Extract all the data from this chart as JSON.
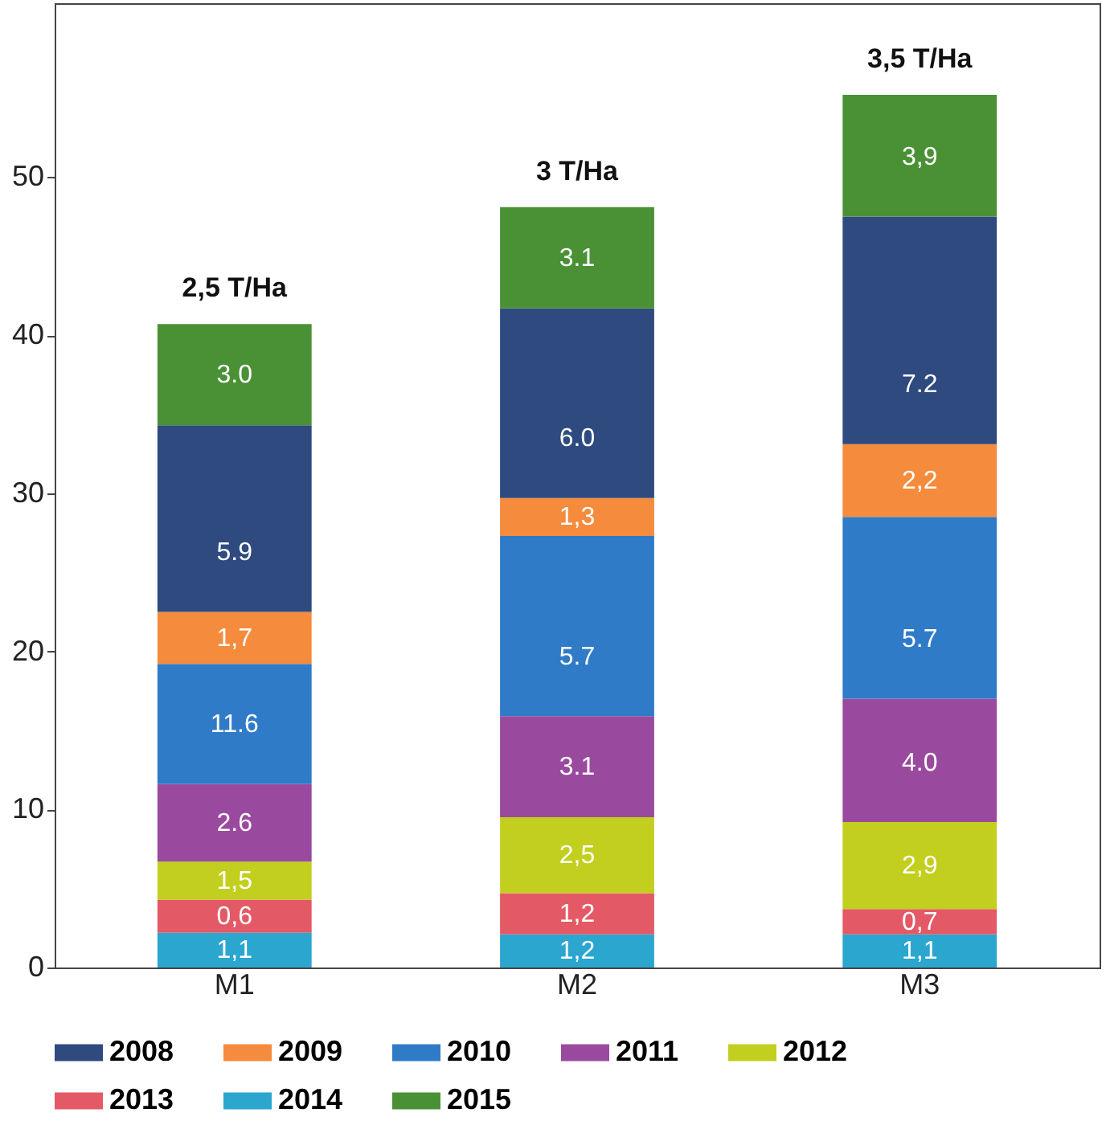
{
  "chart_data": {
    "type": "bar",
    "stacked": true,
    "categories": [
      "M1",
      "M2",
      "M3"
    ],
    "series": [
      {
        "name": "2014",
        "color": "#2aa6cf",
        "values": [
          2.2,
          2.1,
          2.1
        ]
      },
      {
        "name": "2013",
        "color": "#e35a66",
        "values": [
          2.1,
          2.6,
          1.6
        ]
      },
      {
        "name": "2012",
        "color": "#c2cf1e",
        "values": [
          2.4,
          4.8,
          5.5
        ]
      },
      {
        "name": "2011",
        "color": "#9a4a9e",
        "values": [
          4.9,
          6.4,
          7.8
        ]
      },
      {
        "name": "2010",
        "color": "#2f7bc8",
        "values": [
          7.6,
          11.4,
          11.5
        ]
      },
      {
        "name": "2009",
        "color": "#f58b3c",
        "values": [
          3.3,
          2.4,
          4.6
        ]
      },
      {
        "name": "2008",
        "color": "#2e4a7f",
        "values": [
          11.8,
          12.0,
          14.4
        ]
      },
      {
        "name": "2015",
        "color": "#4a9136",
        "values": [
          6.4,
          6.4,
          7.7
        ]
      }
    ],
    "annotations": [
      {
        "text": "2,5 T/Ha",
        "x": "M1",
        "y": 40.7
      },
      {
        "text": "3 T/Ha",
        "x": "M2",
        "y": 48.1
      },
      {
        "text": "3,5 T/Ha",
        "x": "M3",
        "y": 55.2
      },
      {
        "text": "1,1",
        "x": "M1",
        "y": 0
      },
      {
        "text": "1,2",
        "x": "M2",
        "y": 0
      },
      {
        "text": "1,1",
        "x": "M3",
        "y": 0
      },
      {
        "text": "0,6",
        "x": "M1",
        "y": 2.2
      },
      {
        "text": "1,2",
        "x": "M2",
        "y": 2.1
      },
      {
        "text": "0,7",
        "x": "M3",
        "y": 2.1
      },
      {
        "text": "1,5",
        "x": "M1",
        "y": 4.3
      },
      {
        "text": "2,5",
        "x": "M2",
        "y": 4.7
      },
      {
        "text": "2,9",
        "x": "M3",
        "y": 3.7
      },
      {
        "text": "2.6",
        "x": "M1",
        "y": 6.7
      },
      {
        "text": "3.1",
        "x": "M2",
        "y": 9.5
      },
      {
        "text": "4.0",
        "x": "M3",
        "y": 9.2
      },
      {
        "text": "11.6",
        "x": "M1",
        "y": 11.6
      },
      {
        "text": "5.7",
        "x": "M2",
        "y": 15.9
      },
      {
        "text": "5.7",
        "x": "M3",
        "y": 17.0
      },
      {
        "text": "1,7",
        "x": "M1",
        "y": 19.2
      },
      {
        "text": "1,3",
        "x": "M2",
        "y": 27.3
      },
      {
        "text": "2,2",
        "x": "M3",
        "y": 28.5
      },
      {
        "text": "5.9",
        "x": "M1",
        "y": 22.5
      },
      {
        "text": "6.0",
        "x": "M2",
        "y": 29.7
      },
      {
        "text": "7.2",
        "x": "M3",
        "y": 33.1
      },
      {
        "text": "3.0",
        "x": "M1",
        "y": 34.3
      },
      {
        "text": "3.1",
        "x": "M2",
        "y": 41.7
      },
      {
        "text": "3,9",
        "x": "M3",
        "y": 47.5
      }
    ],
    "ylim": [
      0,
      61
    ],
    "yticks": [
      0,
      10,
      20,
      30,
      40,
      50
    ],
    "grid": false,
    "legend": "bottom"
  }
}
